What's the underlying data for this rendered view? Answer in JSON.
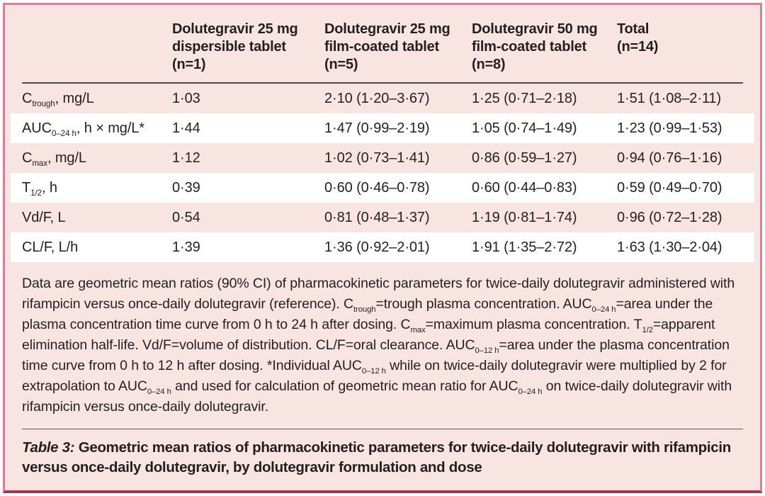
{
  "colors": {
    "panel_bg": "#f8e4e1",
    "border_pink": "#d6809b",
    "bottom_rule": "#a23457",
    "header_rule": "#4a4a4c",
    "caption_rule": "#58585a",
    "stripe_white": "#ffffff",
    "text": "#231f20"
  },
  "table": {
    "columns": [
      [
        "Dolutegravir 25 mg",
        "dispersible tablet",
        "(n=1)"
      ],
      [
        "Dolutegravir 25 mg",
        "film-coated tablet",
        "(n=5)"
      ],
      [
        "Dolutegravir 50 mg",
        "film-coated tablet",
        "(n=8)"
      ],
      [
        "Total",
        "(n=14)"
      ]
    ],
    "rows": [
      {
        "label": [
          {
            "t": "C"
          },
          {
            "t": "trough",
            "sub": true
          },
          {
            "t": ", mg/L"
          }
        ],
        "values": [
          "1·03",
          "2·10 (1·20–3·67)",
          "1·25 (0·71–2·18)",
          "1·51 (1·08–2·11)"
        ]
      },
      {
        "label": [
          {
            "t": "AUC"
          },
          {
            "t": "0–24 h",
            "sub": true
          },
          {
            "t": ", h × mg/L*"
          }
        ],
        "values": [
          "1·44",
          "1·47 (0·99–2·19)",
          "1·05 (0·74–1·49)",
          "1·23 (0·99–1·53)"
        ]
      },
      {
        "label": [
          {
            "t": "C"
          },
          {
            "t": "max",
            "sub": true
          },
          {
            "t": ", mg/L"
          }
        ],
        "values": [
          "1·12",
          "1·02 (0·73–1·41)",
          "0·86 (0·59–1·27)",
          "0·94 (0·76–1·16)"
        ]
      },
      {
        "label": [
          {
            "t": "T"
          },
          {
            "t": "1/2",
            "sub": true
          },
          {
            "t": ", h"
          }
        ],
        "values": [
          "0·39",
          "0·60 (0·46–0·78)",
          "0·60 (0·44–0·83)",
          "0·59 (0·49–0·70)"
        ]
      },
      {
        "label": [
          {
            "t": "Vd/F, L"
          }
        ],
        "values": [
          "0·54",
          "0·81 (0·48–1·37)",
          "1·19 (0·81–1·74)",
          "0·96 (0·72–1·28)"
        ]
      },
      {
        "label": [
          {
            "t": "CL/F, L/h"
          }
        ],
        "values": [
          "1·39",
          "1·36 (0·92–2·01)",
          "1·91 (1·35–2·72)",
          "1·63 (1·30–2·04)"
        ]
      }
    ]
  },
  "footnote": [
    {
      "t": "Data are geometric mean ratios (90% CI) of pharmacokinetic parameters for twice-daily dolutegravir administered with rifampicin versus once-daily dolutegravir (reference). C"
    },
    {
      "t": "trough",
      "sub": true
    },
    {
      "t": "=trough plasma concentration. AUC"
    },
    {
      "t": "0–24 h",
      "sub": true
    },
    {
      "t": "=area under the plasma concentration time curve from 0 h to 24 h after dosing. C"
    },
    {
      "t": "max",
      "sub": true
    },
    {
      "t": "=maximum plasma concentration. T"
    },
    {
      "t": "1/2",
      "sub": true
    },
    {
      "t": "=apparent elimination half-life. Vd/F=volume of distribution. CL/F=oral clearance. AUC"
    },
    {
      "t": "0–12 h",
      "sub": true
    },
    {
      "t": "=area under the plasma concentration time curve from 0 h to 12 h after dosing. *Individual AUC"
    },
    {
      "t": "0–12 h",
      "sub": true
    },
    {
      "t": " while on twice-daily dolutegravir were multiplied by 2 for extrapolation to AUC"
    },
    {
      "t": "0–24 h",
      "sub": true
    },
    {
      "t": " and used for calculation of geometric mean ratio for AUC"
    },
    {
      "t": "0–24 h",
      "sub": true
    },
    {
      "t": " on twice-daily dolutegravir with rifampicin versus once-daily dolutegravir."
    }
  ],
  "caption": {
    "prefix": "Table 3:",
    "text": " Geometric mean ratios of pharmacokinetic parameters for twice-daily dolutegravir with rifampicin versus once-daily dolutegravir, by dolutegravir formulation and dose"
  }
}
